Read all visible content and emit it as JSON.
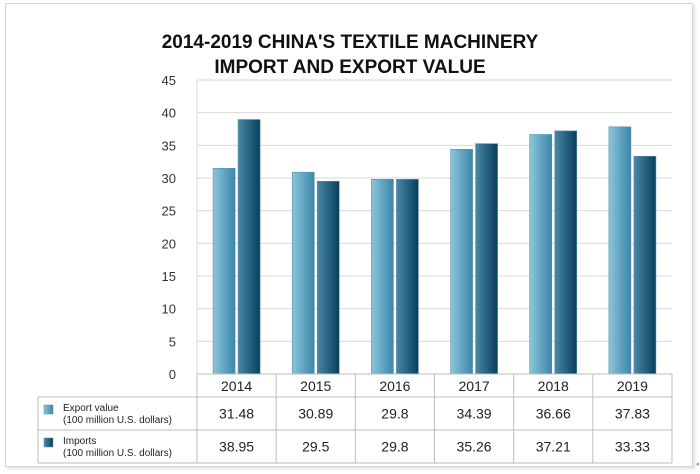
{
  "chart_data": {
    "type": "bar",
    "title": "2014-2019 CHINA'S TEXTILE MACHINERY",
    "title_line2": "IMPORT AND EXPORT VALUE",
    "categories": [
      "2014",
      "2015",
      "2016",
      "2017",
      "2018",
      "2019"
    ],
    "ylim": [
      0,
      45
    ],
    "yticks": [
      0,
      5,
      10,
      15,
      20,
      25,
      30,
      35,
      40,
      45
    ],
    "grid": true,
    "legend_placement": "table-below",
    "series": [
      {
        "name": "Export value",
        "unit": "(100 million U.S. dollars)",
        "values": [
          31.48,
          30.89,
          29.8,
          34.39,
          36.66,
          37.83
        ],
        "labels": [
          "31.48",
          "30.89",
          "29.8",
          "34.39",
          "36.66",
          "37.83"
        ],
        "color_light": "#8cc5da",
        "color_dark": "#3b87aa"
      },
      {
        "name": "Imports",
        "unit": "(100 million U.S. dollars)",
        "values": [
          38.95,
          29.5,
          29.8,
          35.26,
          37.21,
          33.33
        ],
        "labels": [
          "38.95",
          "29.5",
          "29.8",
          "35.26",
          "37.21",
          "33.33"
        ],
        "color_light": "#4a88a6",
        "color_dark": "#063f5c"
      }
    ]
  },
  "corner_mark": "◂"
}
